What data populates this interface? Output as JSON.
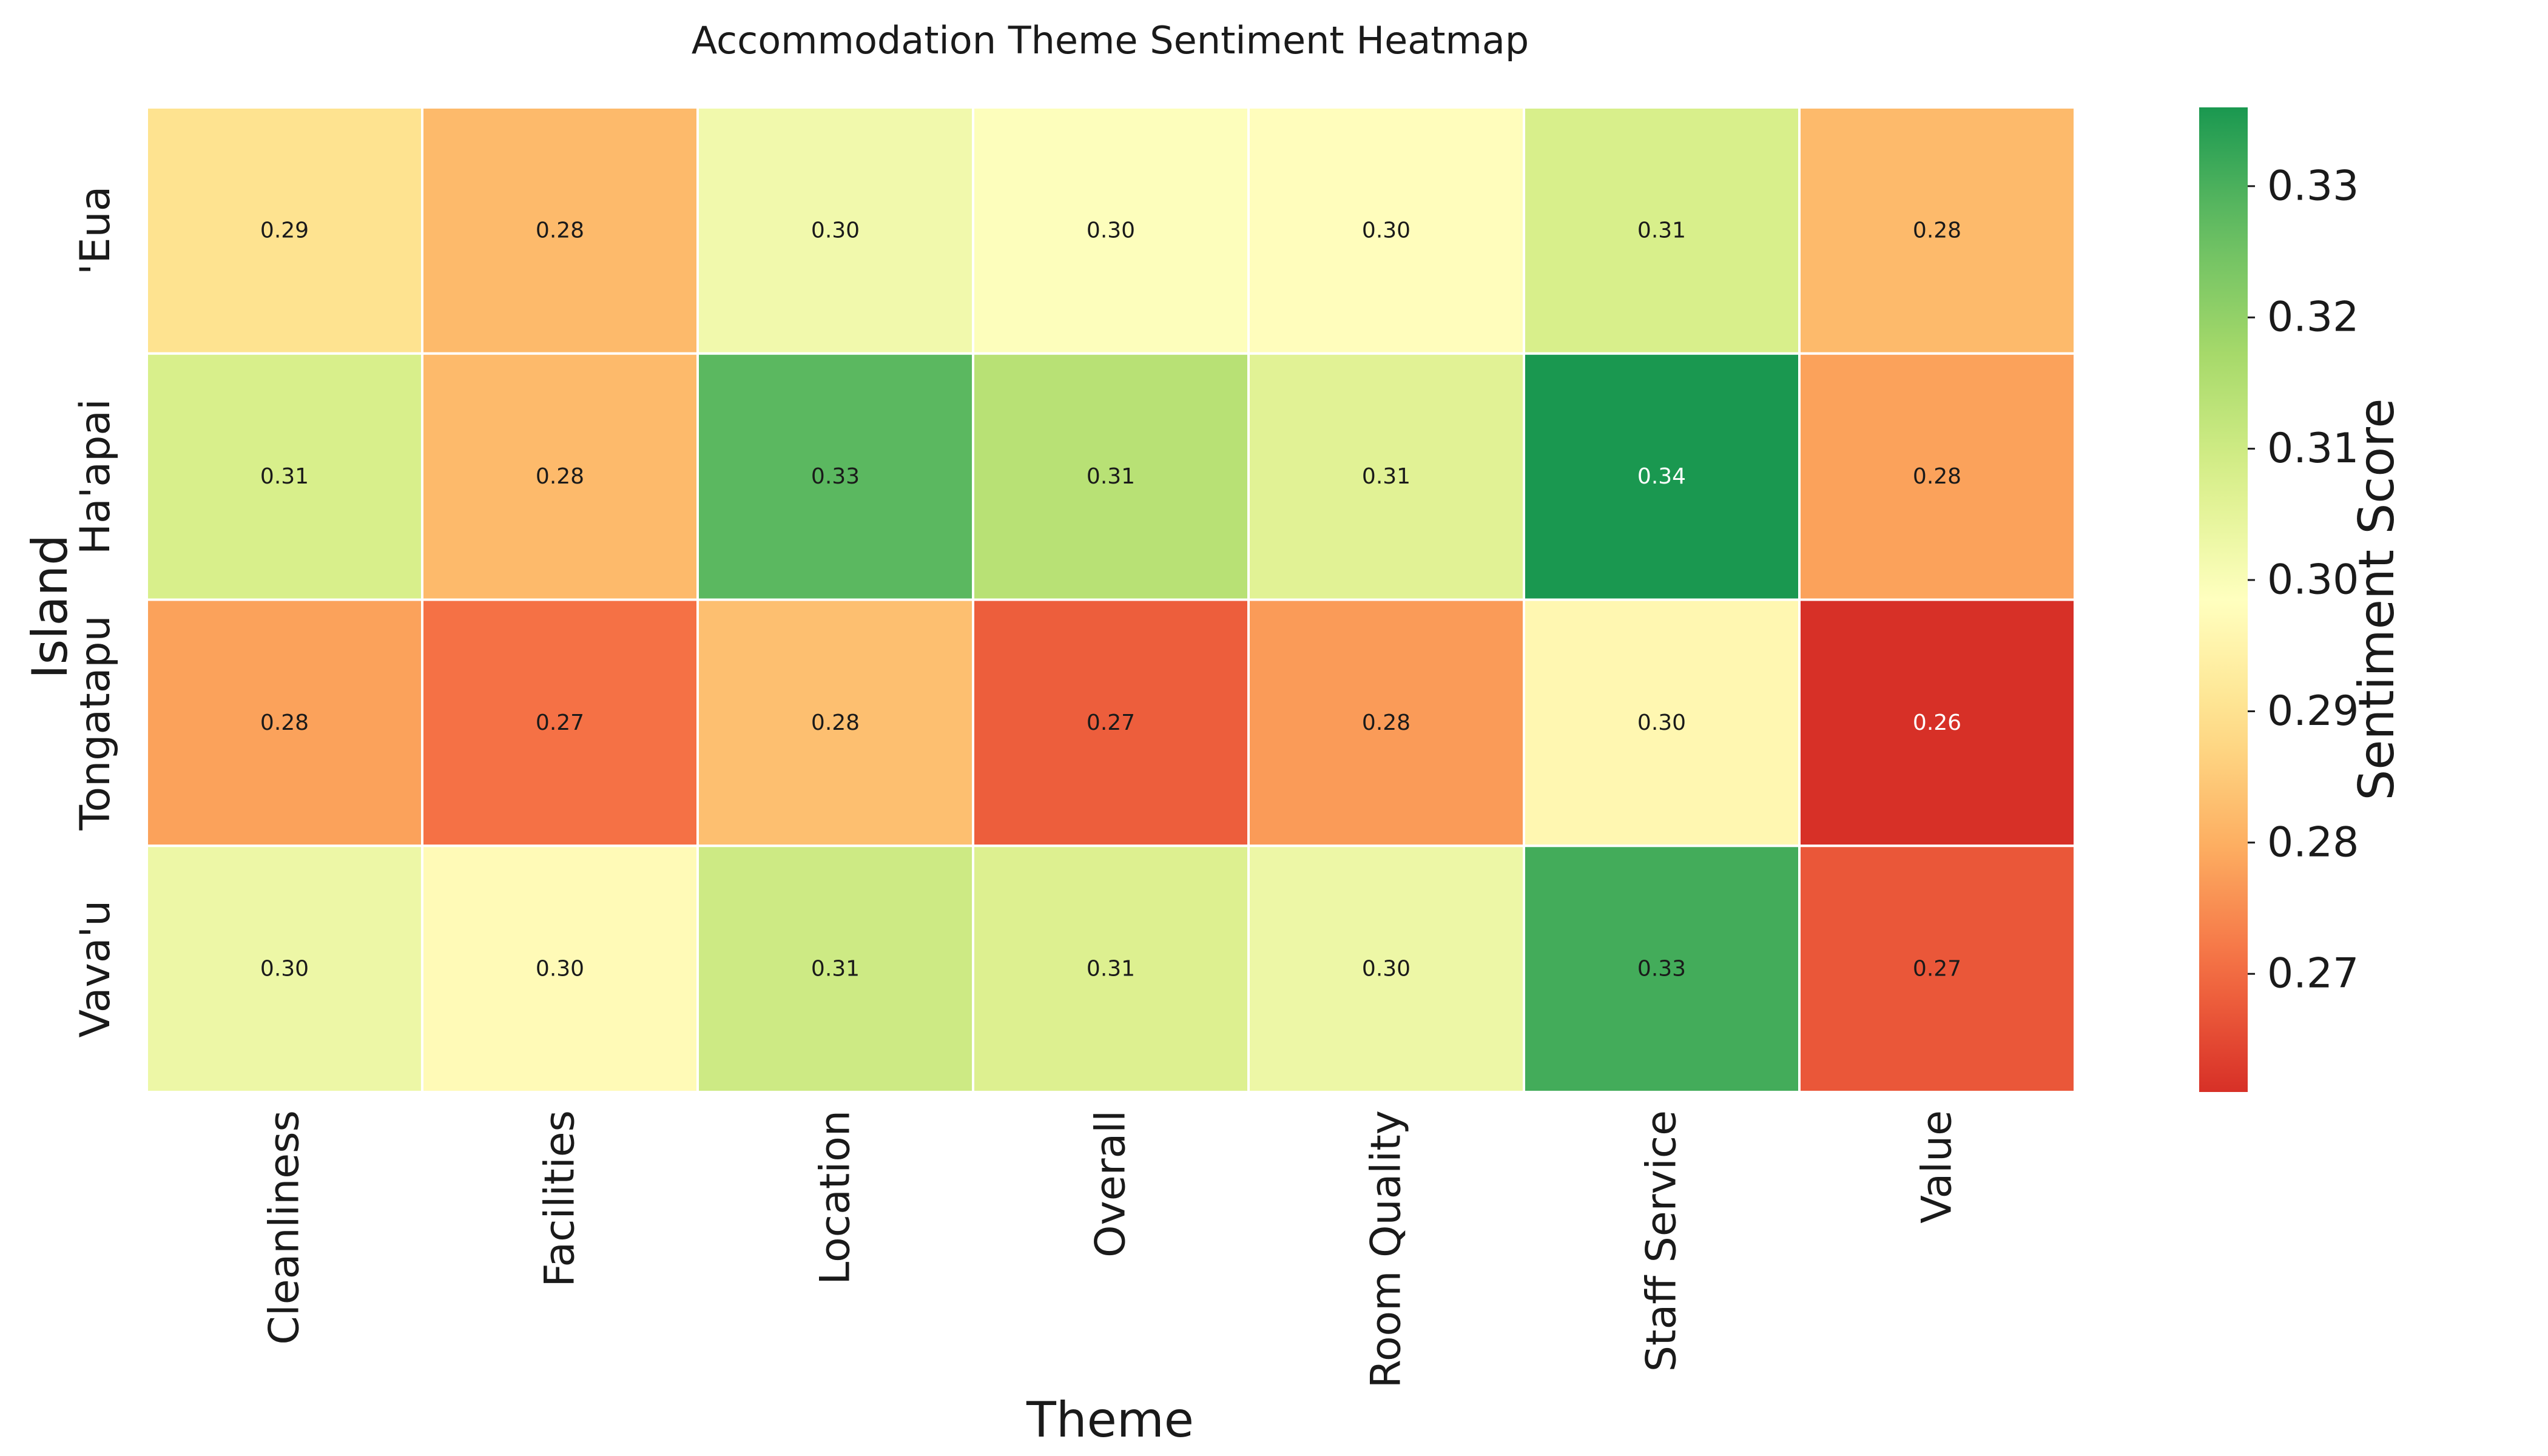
{
  "chart_data": {
    "type": "heatmap",
    "title": "Accommodation Theme Sentiment Heatmap",
    "xlabel": "Theme",
    "ylabel": "Island",
    "colorbar_label": "Sentiment Score",
    "x_categories": [
      "Cleanliness",
      "Facilities",
      "Location",
      "Overall",
      "Room Quality",
      "Staff Service",
      "Value"
    ],
    "y_categories": [
      "'Eua",
      "Ha'apai",
      "Tongatapu",
      "Vava'u"
    ],
    "values": [
      [
        0.29,
        0.282,
        0.302,
        0.299,
        0.298,
        0.308,
        0.282
      ],
      [
        0.308,
        0.282,
        0.328,
        0.314,
        0.306,
        0.336,
        0.278
      ],
      [
        0.278,
        0.271,
        0.283,
        0.268,
        0.277,
        0.296,
        0.261
      ],
      [
        0.303,
        0.297,
        0.31,
        0.307,
        0.303,
        0.331,
        0.267
      ]
    ],
    "value_labels": [
      [
        "0.29",
        "0.28",
        "0.30",
        "0.30",
        "0.30",
        "0.31",
        "0.28"
      ],
      [
        "0.31",
        "0.28",
        "0.33",
        "0.31",
        "0.31",
        "0.34",
        "0.28"
      ],
      [
        "0.28",
        "0.27",
        "0.28",
        "0.27",
        "0.28",
        "0.30",
        "0.26"
      ],
      [
        "0.30",
        "0.30",
        "0.31",
        "0.31",
        "0.30",
        "0.33",
        "0.27"
      ]
    ],
    "colormap": "RdYlGn",
    "color_range": [
      0.261,
      0.336
    ],
    "colorbar_ticks": [
      "0.27",
      "0.28",
      "0.29",
      "0.30",
      "0.31",
      "0.32",
      "0.33"
    ],
    "grid": false,
    "legend": "colorbar-right"
  }
}
